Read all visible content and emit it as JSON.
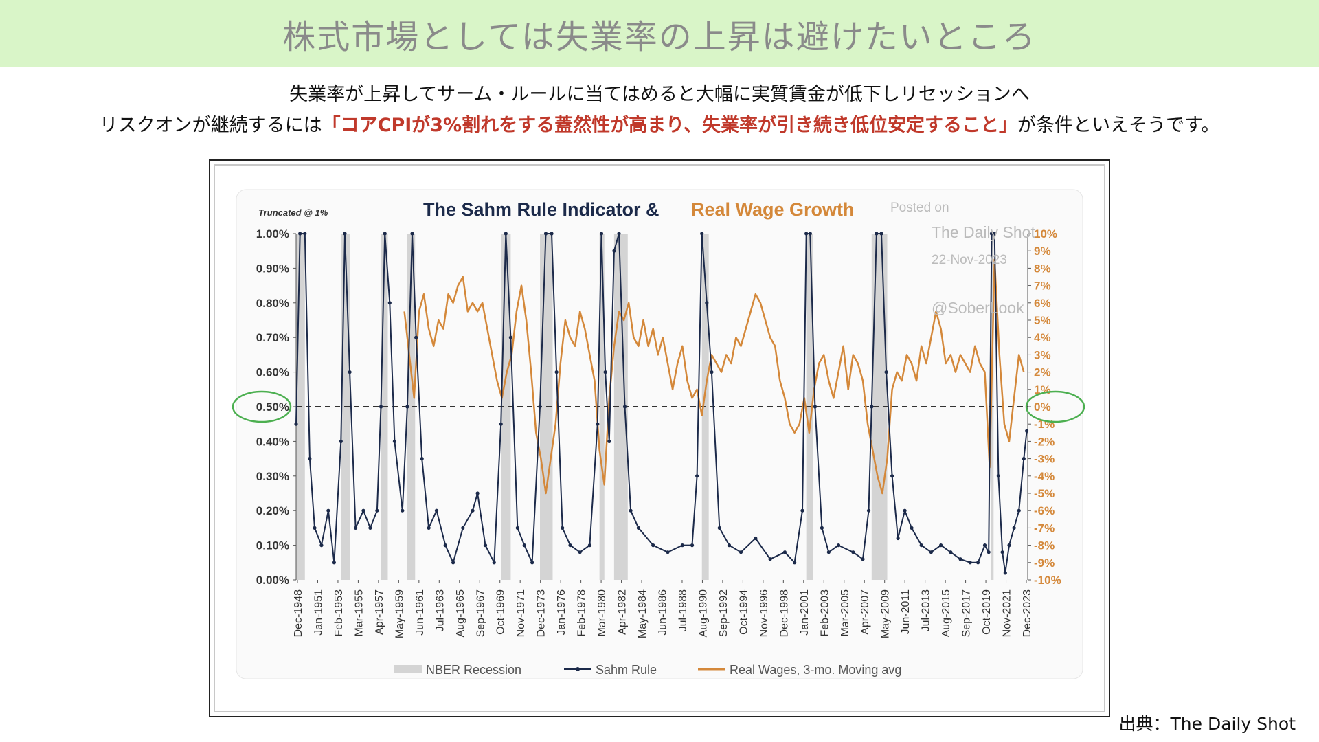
{
  "banner": {
    "title": "株式市場としては失業率の上昇は避けたいところ"
  },
  "subtitle": {
    "line1": "失業率が上昇してサーム・ルールに当てはめると大幅に実質賃金が低下しリセッションへ",
    "line2_prefix": "リスクオンが継続するには",
    "line2_highlight": "「コアCPIが3%割れをする蓋然性が高まり、失業率が引き続き低位安定すること」",
    "line2_suffix": "が条件といえそうです。"
  },
  "source": "出典：The Daily Shot",
  "colors": {
    "navy": "#1c2a4a",
    "orange": "#d4883a",
    "recession": "#d4d4d4",
    "highlight": "#c0392b",
    "circle": "#4caf50"
  },
  "chart_data": {
    "type": "line",
    "title_part1": "The Sahm Rule Indicator & ",
    "title_part2": "Real Wage Growth",
    "truncated_note": "Truncated @ 1%",
    "watermark": {
      "line1": "Posted on",
      "line2": "The Daily Shot",
      "line3": "22-Nov-2023",
      "line4": "@SoberLook"
    },
    "left_axis": {
      "ticks": [
        "0.00%",
        "0.10%",
        "0.20%",
        "0.30%",
        "0.40%",
        "0.50%",
        "0.60%",
        "0.70%",
        "0.80%",
        "0.90%",
        "1.00%"
      ],
      "ylim": [
        0,
        1.0
      ]
    },
    "right_axis": {
      "ticks": [
        "-10%",
        "-9%",
        "-8%",
        "-7%",
        "-6%",
        "-5%",
        "-4%",
        "-3%",
        "-2%",
        "-1%",
        "0%",
        "1%",
        "2%",
        "3%",
        "4%",
        "5%",
        "6%",
        "7%",
        "8%",
        "9%",
        "10%"
      ],
      "ylim": [
        -10,
        10
      ]
    },
    "x_tick_labels": [
      "Dec-1948",
      "Jan-1951",
      "Feb-1953",
      "Mar-1955",
      "Apr-1957",
      "May-1959",
      "Jun-1961",
      "Jul-1963",
      "Aug-1965",
      "Sep-1967",
      "Oct-1969",
      "Nov-1971",
      "Dec-1973",
      "Jan-1976",
      "Feb-1978",
      "Mar-1980",
      "Apr-1982",
      "May-1984",
      "Jun-1986",
      "Jul-1988",
      "Aug-1990",
      "Sep-1992",
      "Oct-1994",
      "Nov-1996",
      "Dec-1998",
      "Jan-2001",
      "Feb-2003",
      "Mar-2005",
      "Apr-2007",
      "May-2009",
      "Jun-2011",
      "Jul-2013",
      "Aug-2015",
      "Sep-2017",
      "Oct-2019",
      "Nov-2021",
      "Dec-2023"
    ],
    "xlim": [
      1948.9,
      2023.9
    ],
    "threshold_line": 0.5,
    "recessions": [
      [
        1948.9,
        1949.8
      ],
      [
        1953.5,
        1954.4
      ],
      [
        1957.6,
        1958.3
      ],
      [
        1960.3,
        1961.1
      ],
      [
        1969.9,
        1970.9
      ],
      [
        1973.9,
        1975.2
      ],
      [
        1980.0,
        1980.5
      ],
      [
        1981.5,
        1982.9
      ],
      [
        1990.5,
        1991.2
      ],
      [
        2001.2,
        2001.9
      ],
      [
        2007.9,
        2009.5
      ],
      [
        2020.1,
        2020.4
      ]
    ],
    "series": [
      {
        "name": "Sahm Rule",
        "axis": "left",
        "x": [
          1948.9,
          1949.3,
          1949.8,
          1950.3,
          1950.8,
          1951.5,
          1952.2,
          1952.8,
          1953.5,
          1953.9,
          1954.4,
          1955.0,
          1955.8,
          1956.5,
          1957.2,
          1957.6,
          1958.0,
          1958.5,
          1959.0,
          1959.8,
          1960.3,
          1960.8,
          1961.2,
          1961.8,
          1962.5,
          1963.3,
          1964.2,
          1965.0,
          1966.0,
          1967.0,
          1967.5,
          1968.3,
          1969.2,
          1969.9,
          1970.4,
          1970.9,
          1971.6,
          1972.3,
          1973.1,
          1973.9,
          1974.5,
          1975.1,
          1975.6,
          1976.2,
          1977.0,
          1978.0,
          1979.0,
          1979.8,
          1980.2,
          1980.6,
          1981.0,
          1981.5,
          1982.0,
          1982.6,
          1983.2,
          1984.0,
          1985.5,
          1987.0,
          1988.5,
          1989.5,
          1990.0,
          1990.5,
          1991.0,
          1991.5,
          1992.3,
          1993.3,
          1994.5,
          1996.0,
          1997.5,
          1999.0,
          2000.0,
          2000.8,
          2001.2,
          2001.6,
          2002.1,
          2002.8,
          2003.5,
          2004.5,
          2006.0,
          2007.0,
          2007.6,
          2007.9,
          2008.4,
          2008.9,
          2009.4,
          2010.0,
          2010.6,
          2011.3,
          2012.0,
          2013.0,
          2014.0,
          2015.0,
          2016.0,
          2017.0,
          2018.0,
          2018.8,
          2019.5,
          2019.9,
          2020.2,
          2020.5,
          2020.9,
          2021.3,
          2021.6,
          2022.0,
          2022.5,
          2023.0,
          2023.5,
          2023.8
        ],
        "y": [
          0.45,
          1.0,
          1.0,
          0.35,
          0.15,
          0.1,
          0.2,
          0.05,
          0.4,
          1.0,
          0.6,
          0.15,
          0.2,
          0.15,
          0.2,
          0.5,
          1.0,
          0.8,
          0.4,
          0.2,
          0.5,
          1.0,
          0.7,
          0.35,
          0.15,
          0.2,
          0.1,
          0.05,
          0.15,
          0.2,
          0.25,
          0.1,
          0.05,
          0.45,
          1.0,
          0.7,
          0.15,
          0.1,
          0.05,
          0.5,
          1.0,
          1.0,
          0.6,
          0.15,
          0.1,
          0.08,
          0.1,
          0.45,
          1.0,
          0.6,
          0.4,
          0.95,
          1.0,
          0.5,
          0.2,
          0.15,
          0.1,
          0.08,
          0.1,
          0.1,
          0.3,
          1.0,
          0.8,
          0.6,
          0.15,
          0.1,
          0.08,
          0.12,
          0.06,
          0.08,
          0.05,
          0.2,
          1.0,
          1.0,
          0.5,
          0.15,
          0.08,
          0.1,
          0.08,
          0.06,
          0.2,
          0.5,
          1.0,
          1.0,
          0.6,
          0.3,
          0.12,
          0.2,
          0.15,
          0.1,
          0.08,
          0.1,
          0.08,
          0.06,
          0.05,
          0.05,
          0.1,
          0.08,
          1.0,
          1.0,
          0.3,
          0.08,
          0.02,
          0.1,
          0.15,
          0.2,
          0.35,
          0.43
        ]
      },
      {
        "name": "Real Wages, 3-mo. Moving avg",
        "axis": "right",
        "x": [
          1960.0,
          1960.5,
          1961.0,
          1961.5,
          1962.0,
          1962.5,
          1963.0,
          1963.5,
          1964.0,
          1964.5,
          1965.0,
          1965.5,
          1966.0,
          1966.5,
          1967.0,
          1967.5,
          1968.0,
          1968.5,
          1969.0,
          1969.5,
          1970.0,
          1970.5,
          1971.0,
          1971.5,
          1972.0,
          1972.5,
          1973.0,
          1973.5,
          1974.0,
          1974.5,
          1975.0,
          1975.5,
          1976.0,
          1976.5,
          1977.0,
          1977.5,
          1978.0,
          1978.5,
          1979.0,
          1979.5,
          1980.0,
          1980.5,
          1981.0,
          1981.5,
          1982.0,
          1982.5,
          1983.0,
          1983.5,
          1984.0,
          1984.5,
          1985.0,
          1985.5,
          1986.0,
          1986.5,
          1987.0,
          1987.5,
          1988.0,
          1988.5,
          1989.0,
          1989.5,
          1990.0,
          1990.5,
          1991.0,
          1991.5,
          1992.0,
          1992.5,
          1993.0,
          1993.5,
          1994.0,
          1994.5,
          1995.0,
          1995.5,
          1996.0,
          1996.5,
          1997.0,
          1997.5,
          1998.0,
          1998.5,
          1999.0,
          1999.5,
          2000.0,
          2000.5,
          2001.0,
          2001.5,
          2002.0,
          2002.5,
          2003.0,
          2003.5,
          2004.0,
          2004.5,
          2005.0,
          2005.5,
          2006.0,
          2006.5,
          2007.0,
          2007.5,
          2008.0,
          2008.5,
          2009.0,
          2009.5,
          2010.0,
          2010.5,
          2011.0,
          2011.5,
          2012.0,
          2012.5,
          2013.0,
          2013.5,
          2014.0,
          2014.5,
          2015.0,
          2015.5,
          2016.0,
          2016.5,
          2017.0,
          2017.5,
          2018.0,
          2018.5,
          2019.0,
          2019.5,
          2020.0,
          2020.5,
          2021.0,
          2021.5,
          2022.0,
          2022.5,
          2023.0,
          2023.5
        ],
        "y": [
          5.5,
          3.0,
          0.5,
          5.5,
          6.5,
          4.5,
          3.5,
          5.0,
          4.5,
          6.5,
          6.0,
          7.0,
          7.5,
          5.5,
          6.0,
          5.5,
          6.0,
          4.5,
          3.0,
          1.5,
          0.5,
          2.0,
          3.0,
          5.5,
          7.0,
          5.0,
          2.0,
          -1.5,
          -3.0,
          -5.0,
          -3.0,
          -1.0,
          2.5,
          5.0,
          4.0,
          3.5,
          5.5,
          4.5,
          3.0,
          1.5,
          -2.5,
          -4.5,
          0.5,
          3.5,
          5.5,
          5.0,
          6.0,
          4.0,
          3.5,
          5.0,
          3.5,
          4.5,
          3.0,
          4.0,
          2.5,
          1.0,
          2.5,
          3.5,
          1.5,
          0.5,
          1.0,
          -0.5,
          1.5,
          3.0,
          2.5,
          2.0,
          3.0,
          2.5,
          4.0,
          3.5,
          4.5,
          5.5,
          6.5,
          6.0,
          5.0,
          4.0,
          3.5,
          1.5,
          0.5,
          -1.0,
          -1.5,
          -1.0,
          0.5,
          -1.5,
          1.0,
          2.5,
          3.0,
          1.5,
          0.5,
          2.0,
          3.5,
          1.0,
          3.0,
          2.5,
          1.5,
          -1.0,
          -2.5,
          -4.0,
          -5.0,
          -3.0,
          1.0,
          2.0,
          1.5,
          3.0,
          2.5,
          1.5,
          3.5,
          2.5,
          4.0,
          5.5,
          4.5,
          2.5,
          3.0,
          2.0,
          3.0,
          2.5,
          2.0,
          3.5,
          2.5,
          2.0,
          -3.5,
          8.5,
          3.0,
          -1.0,
          -2.0,
          0.5,
          3.0,
          2.0
        ]
      }
    ],
    "legend": [
      {
        "label": "NBER Recession",
        "kind": "bar"
      },
      {
        "label": "Sahm Rule",
        "kind": "line-dot"
      },
      {
        "label": "Real Wages, 3-mo. Moving avg",
        "kind": "line"
      }
    ]
  }
}
